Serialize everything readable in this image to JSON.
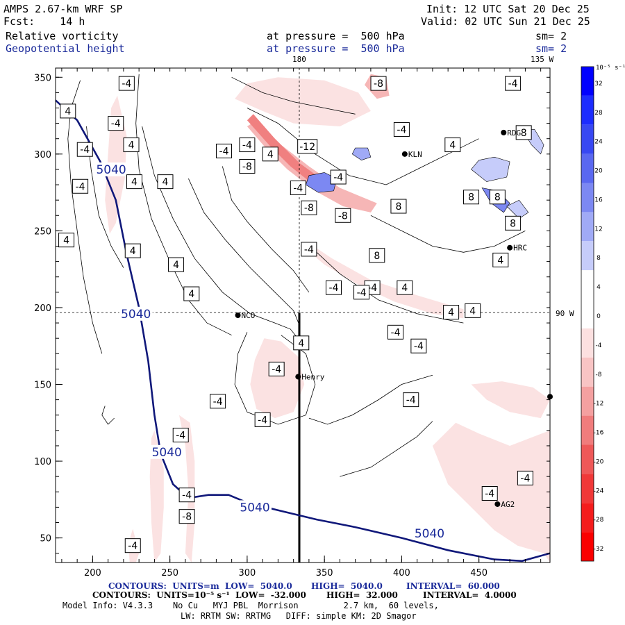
{
  "header": {
    "model": "AMPS 2.67-km WRF SP",
    "forecast": "Fcst:    14 h",
    "init": "Init: 12 UTC Sat 20 Dec 25",
    "valid": "Valid: 02 UTC Sun 21 Dec 25",
    "field1_name": "Relative vorticity",
    "field1_level": "at pressure =  500 hPa",
    "field1_smooth": "sm= 2",
    "field2_name": "Geopotential height",
    "field2_level": "at pressure =  500 hPa",
    "field2_smooth": "sm= 2"
  },
  "map_labels": {
    "top_180": "180",
    "top_135w": "135 W",
    "right_90w": "90 W",
    "stations": [
      {
        "name": "NCO",
        "x": 294,
        "y": 195
      },
      {
        "name": "Henry",
        "x": 333,
        "y": 155
      },
      {
        "name": "KLN",
        "x": 402,
        "y": 300
      },
      {
        "name": "RDG",
        "x": 466,
        "y": 314
      },
      {
        "name": "HRC",
        "x": 470,
        "y": 239
      },
      {
        "name": "AG2",
        "x": 462,
        "y": 72
      }
    ],
    "edge_dot": {
      "x": 496,
      "y": 142
    }
  },
  "chart_data": {
    "type": "contour",
    "x_ticks": [
      "200",
      "250",
      "300",
      "350",
      "400",
      "450"
    ],
    "y_ticks": [
      "50",
      "100",
      "150",
      "200",
      "250",
      "300",
      "350"
    ],
    "xlim": [
      176,
      496
    ],
    "ylim": [
      34,
      356
    ],
    "height_contour": {
      "label": "5040",
      "units": "m",
      "points": [
        [
          176,
          335
        ],
        [
          190,
          322
        ],
        [
          205,
          295
        ],
        [
          215,
          270
        ],
        [
          222,
          235
        ],
        [
          230,
          200
        ],
        [
          236,
          165
        ],
        [
          240,
          130
        ],
        [
          244,
          105
        ],
        [
          252,
          85
        ],
        [
          262,
          76
        ],
        [
          275,
          78
        ],
        [
          288,
          78
        ],
        [
          300,
          73
        ],
        [
          320,
          68
        ],
        [
          345,
          62
        ],
        [
          370,
          57
        ],
        [
          400,
          50
        ],
        [
          430,
          42
        ],
        [
          460,
          36
        ],
        [
          478,
          35
        ],
        [
          496,
          40
        ]
      ],
      "label_positions": [
        [
          212,
          290
        ],
        [
          228,
          196
        ],
        [
          248,
          106
        ],
        [
          305,
          70
        ],
        [
          418,
          53
        ]
      ]
    },
    "vorticity_labels": [
      {
        "v": "-4",
        "x": 222,
        "y": 346
      },
      {
        "v": "4",
        "x": 184,
        "y": 328
      },
      {
        "v": "-4",
        "x": 215,
        "y": 320
      },
      {
        "v": "-4",
        "x": 195,
        "y": 303
      },
      {
        "v": "4",
        "x": 225,
        "y": 306
      },
      {
        "v": "-4",
        "x": 192,
        "y": 279
      },
      {
        "v": "4",
        "x": 227,
        "y": 282
      },
      {
        "v": "4",
        "x": 247,
        "y": 282
      },
      {
        "v": "4",
        "x": 183,
        "y": 244
      },
      {
        "v": "4",
        "x": 226,
        "y": 237
      },
      {
        "v": "4",
        "x": 254,
        "y": 228
      },
      {
        "v": "4",
        "x": 264,
        "y": 209
      },
      {
        "v": "-4",
        "x": 285,
        "y": 302
      },
      {
        "v": "-4",
        "x": 300,
        "y": 306
      },
      {
        "v": "-8",
        "x": 300,
        "y": 292
      },
      {
        "v": "-12",
        "x": 339,
        "y": 305
      },
      {
        "v": "4",
        "x": 315,
        "y": 300
      },
      {
        "v": "-4",
        "x": 333,
        "y": 278
      },
      {
        "v": "-4",
        "x": 359,
        "y": 285
      },
      {
        "v": "-8",
        "x": 340,
        "y": 265
      },
      {
        "v": "-8",
        "x": 362,
        "y": 260
      },
      {
        "v": "-8",
        "x": 385,
        "y": 346
      },
      {
        "v": "-4",
        "x": 400,
        "y": 316
      },
      {
        "v": "4",
        "x": 433,
        "y": 306
      },
      {
        "v": "8",
        "x": 445,
        "y": 272
      },
      {
        "v": "8",
        "x": 462,
        "y": 272
      },
      {
        "v": "8",
        "x": 472,
        "y": 255
      },
      {
        "v": "-4",
        "x": 472,
        "y": 346
      },
      {
        "v": "8",
        "x": 479,
        "y": 314
      },
      {
        "v": "8",
        "x": 398,
        "y": 266
      },
      {
        "v": "-4",
        "x": 340,
        "y": 238
      },
      {
        "v": "8",
        "x": 384,
        "y": 234
      },
      {
        "v": "4",
        "x": 464,
        "y": 231
      },
      {
        "v": "4",
        "x": 402,
        "y": 213
      },
      {
        "v": "-4",
        "x": 381,
        "y": 213
      },
      {
        "v": "-4",
        "x": 356,
        "y": 213
      },
      {
        "v": "-4",
        "x": 374,
        "y": 210
      },
      {
        "v": "4",
        "x": 432,
        "y": 197
      },
      {
        "v": "4",
        "x": 446,
        "y": 198
      },
      {
        "v": "-4",
        "x": 396,
        "y": 184
      },
      {
        "v": "4",
        "x": 335,
        "y": 177
      },
      {
        "v": "-4",
        "x": 411,
        "y": 175
      },
      {
        "v": "-4",
        "x": 319,
        "y": 160
      },
      {
        "v": "-4",
        "x": 406,
        "y": 140
      },
      {
        "v": "-4",
        "x": 281,
        "y": 139
      },
      {
        "v": "-4",
        "x": 310,
        "y": 127
      },
      {
        "v": "-4",
        "x": 257,
        "y": 117
      },
      {
        "v": "-4",
        "x": 480,
        "y": 89
      },
      {
        "v": "-4",
        "x": 457,
        "y": 79
      },
      {
        "v": "-4",
        "x": 261,
        "y": 78
      },
      {
        "v": "-8",
        "x": 261,
        "y": 64
      },
      {
        "v": "-4",
        "x": 226,
        "y": 45
      }
    ],
    "colorbar": {
      "units": "10⁻⁵ s⁻¹",
      "levels": [
        "32",
        "28",
        "24",
        "20",
        "16",
        "12",
        "8",
        "4",
        "0",
        "-4",
        "-8",
        "-12",
        "-16",
        "-20",
        "-24",
        "-28",
        "-32"
      ],
      "colors": [
        "#0000ff",
        "#1c2cff",
        "#3848f2",
        "#5a68f0",
        "#7c88f2",
        "#a0aaf6",
        "#c6ccfa",
        "#ffffff",
        "#ffffff",
        "#fce0e0",
        "#f8c4c4",
        "#f4a0a0",
        "#f07c7c",
        "#ee5858",
        "#f03838",
        "#f41c1c",
        "#fa0000"
      ]
    }
  },
  "footer": {
    "line1a": "CONTOURS:  UNITS=m  LOW=  5040.0",
    "line1b": "HIGH=  5040.0",
    "line1c": "INTERVAL=  60.000",
    "line2a": "CONTOURS:  UNITS=10⁻⁵ s⁻¹  LOW=  -32.000",
    "line2b": "HIGH=  32.000",
    "line2c": "INTERVAL=  4.0000",
    "line3": "Model Info: V4.3.3    No Cu   MYJ PBL  Morrison         2.7 km,  60 levels,",
    "line4": "LW: RRTM SW: RRTMG   DIFF: simple KM: 2D Smagor"
  }
}
